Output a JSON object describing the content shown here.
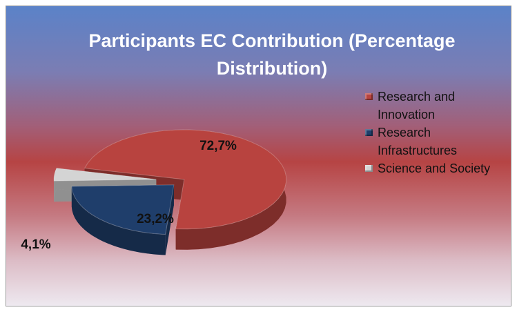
{
  "chart_data": {
    "type": "pie",
    "title": "Participants EC Contribution (Percentage Distribution)",
    "categories": [
      "Research and Innovation",
      "Research Infrastructures",
      "Science and Society"
    ],
    "values": [
      72.7,
      23.2,
      4.1
    ],
    "value_labels": [
      "72,7%",
      "23,2%",
      "4,1%"
    ],
    "colors": [
      "#b8433f",
      "#1f3e6b",
      "#d4d4d4"
    ],
    "legend": "right"
  }
}
